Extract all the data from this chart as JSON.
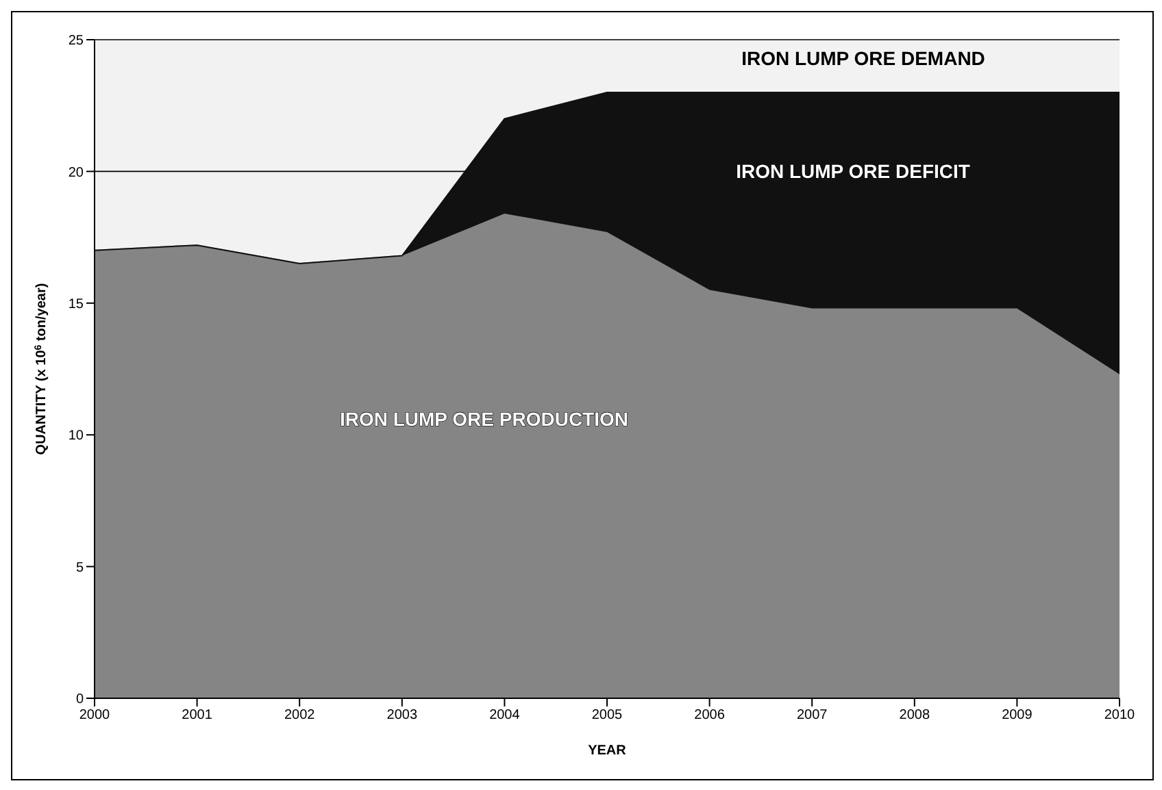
{
  "chart_data": {
    "type": "area",
    "stacked": true,
    "xlabel": "YEAR",
    "ylabel": "QUANTITY (x 10$^{6}$ ton/year)",
    "x": [
      2000,
      2001,
      2002,
      2003,
      2004,
      2005,
      2006,
      2007,
      2008,
      2009,
      2010
    ],
    "xlim": [
      2000,
      2010
    ],
    "xticks": [
      2000,
      2001,
      2002,
      2003,
      2004,
      2005,
      2006,
      2007,
      2008,
      2009,
      2010
    ],
    "ylim": [
      0,
      25
    ],
    "yticks": [
      0,
      5,
      10,
      15,
      20,
      25
    ],
    "grid": "y",
    "legend": false,
    "series": [
      {
        "color": "#858585",
        "values": [
          17,
          17.2,
          16.5,
          16.8,
          18.4,
          17.7,
          15.5,
          14.8,
          14.8,
          14.8,
          12.3
        ]
      },
      {
        "color": "#111111",
        "values": [
          0,
          0,
          0,
          0,
          3.6,
          5.3,
          7.5,
          8.2,
          8.2,
          8.2,
          10.7
        ]
      }
    ],
    "annotations": [
      "IRON LUMP ORE DEMAND",
      "IRON LUMP ORE DEFICIT",
      "IRON LUMP ORE PRODUCTION"
    ]
  }
}
